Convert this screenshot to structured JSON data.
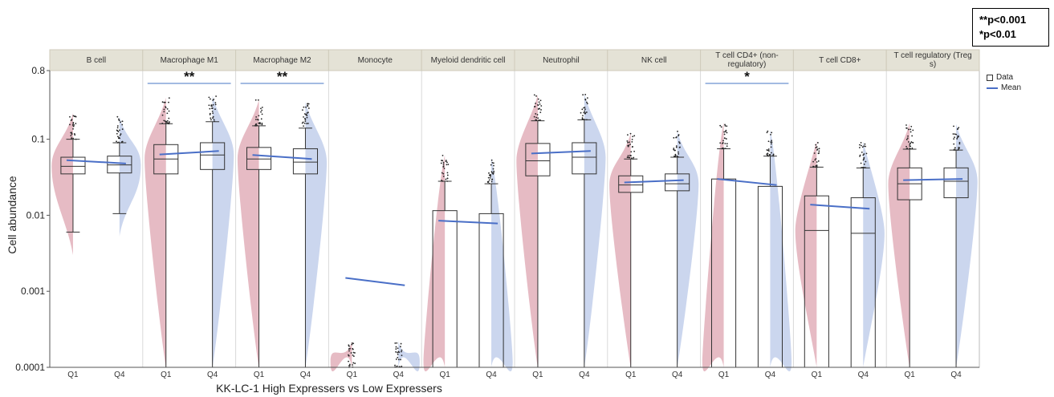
{
  "significance_legend": {
    "line1": "**p<0.001",
    "line2": "*p<0.01"
  },
  "plot_legend": {
    "data_label": "Data",
    "mean_label": "Mean"
  },
  "colors": {
    "high": "#d68e9c",
    "low": "#a8bbe2",
    "mean": "#4a6fc7",
    "header": "#e4e2d6",
    "sig_line": "#6c92d0"
  },
  "chart_data": {
    "type": "violin-box",
    "title": "",
    "xlabel": "KK-LC-1 High Expressers vs Low Expressers",
    "ylabel": "Cell abundance",
    "y_scale": "log",
    "ylim": [
      0.0001,
      0.8
    ],
    "y_ticks": [
      {
        "value": 0.8,
        "label": "0.8"
      },
      {
        "value": 0.1,
        "label": "0.1"
      },
      {
        "value": 0.01,
        "label": "0.01"
      },
      {
        "value": 0.001,
        "label": "0.001"
      },
      {
        "value": 0.0001,
        "label": "0.0001"
      }
    ],
    "groups": [
      "Q1",
      "Q4"
    ],
    "panels": [
      {
        "name": "B cell",
        "sig": "",
        "boxes": [
          {
            "group": "Q1",
            "min": 0.006,
            "q1": 0.035,
            "median": 0.044,
            "q3": 0.058,
            "max": 0.1,
            "mean": 0.053
          },
          {
            "group": "Q4",
            "min": 0.0105,
            "q1": 0.036,
            "median": 0.046,
            "q3": 0.06,
            "max": 0.09,
            "mean": 0.048
          }
        ]
      },
      {
        "name": "Macrophage M1",
        "sig": "**",
        "boxes": [
          {
            "group": "Q1",
            "min": 0.0001,
            "q1": 0.035,
            "median": 0.055,
            "q3": 0.085,
            "max": 0.16,
            "mean": 0.063
          },
          {
            "group": "Q4",
            "min": 0.0001,
            "q1": 0.04,
            "median": 0.062,
            "q3": 0.09,
            "max": 0.17,
            "mean": 0.07
          }
        ]
      },
      {
        "name": "Macrophage M2",
        "sig": "**",
        "boxes": [
          {
            "group": "Q1",
            "min": 0.0001,
            "q1": 0.04,
            "median": 0.055,
            "q3": 0.078,
            "max": 0.15,
            "mean": 0.062
          },
          {
            "group": "Q4",
            "min": 0.0001,
            "q1": 0.035,
            "median": 0.05,
            "q3": 0.075,
            "max": 0.14,
            "mean": 0.055
          }
        ]
      },
      {
        "name": "Monocyte",
        "sig": "",
        "boxes": [
          {
            "group": "Q1",
            "min": 0.0001,
            "q1": 0.0001,
            "median": 0.0001,
            "q3": 0.0001,
            "max": 0.0001,
            "mean": 0.0015
          },
          {
            "group": "Q4",
            "min": 0.0001,
            "q1": 0.0001,
            "median": 0.0001,
            "q3": 0.0001,
            "max": 0.0001,
            "mean": 0.0012
          }
        ]
      },
      {
        "name": "Myeloid dendritic cell",
        "sig": "",
        "boxes": [
          {
            "group": "Q1",
            "min": 0.0001,
            "q1": 0.0001,
            "median": 0.0001,
            "q3": 0.0115,
            "max": 0.028,
            "mean": 0.0085
          },
          {
            "group": "Q4",
            "min": 0.0001,
            "q1": 0.0001,
            "median": 0.0001,
            "q3": 0.0105,
            "max": 0.026,
            "mean": 0.0078
          }
        ]
      },
      {
        "name": "Neutrophil",
        "sig": "",
        "boxes": [
          {
            "group": "Q1",
            "min": 0.0001,
            "q1": 0.033,
            "median": 0.052,
            "q3": 0.088,
            "max": 0.175,
            "mean": 0.065
          },
          {
            "group": "Q4",
            "min": 0.0001,
            "q1": 0.035,
            "median": 0.058,
            "q3": 0.09,
            "max": 0.18,
            "mean": 0.07
          }
        ]
      },
      {
        "name": "NK cell",
        "sig": "",
        "boxes": [
          {
            "group": "Q1",
            "min": 0.0001,
            "q1": 0.02,
            "median": 0.025,
            "q3": 0.033,
            "max": 0.055,
            "mean": 0.027
          },
          {
            "group": "Q4",
            "min": 0.0001,
            "q1": 0.021,
            "median": 0.026,
            "q3": 0.035,
            "max": 0.058,
            "mean": 0.029
          }
        ]
      },
      {
        "name": "T cell CD4+ (non-regulatory)",
        "sig": "*",
        "boxes": [
          {
            "group": "Q1",
            "min": 0.0001,
            "q1": 0.0001,
            "median": 0.0001,
            "q3": 0.03,
            "max": 0.075,
            "mean": 0.03
          },
          {
            "group": "Q4",
            "min": 0.0001,
            "q1": 0.0001,
            "median": 0.0001,
            "q3": 0.024,
            "max": 0.06,
            "mean": 0.025
          }
        ]
      },
      {
        "name": "T cell CD8+",
        "sig": "",
        "boxes": [
          {
            "group": "Q1",
            "min": 0.0001,
            "q1": 0.0001,
            "median": 0.0063,
            "q3": 0.018,
            "max": 0.043,
            "mean": 0.0138
          },
          {
            "group": "Q4",
            "min": 0.0001,
            "q1": 0.0001,
            "median": 0.0058,
            "q3": 0.017,
            "max": 0.042,
            "mean": 0.0122
          }
        ]
      },
      {
        "name": "T cell regulatory (Tregs)",
        "sig": "",
        "boxes": [
          {
            "group": "Q1",
            "min": 0.0001,
            "q1": 0.016,
            "median": 0.026,
            "q3": 0.042,
            "max": 0.074,
            "mean": 0.029
          },
          {
            "group": "Q4",
            "min": 0.0001,
            "q1": 0.017,
            "median": 0.028,
            "q3": 0.042,
            "max": 0.072,
            "mean": 0.03
          }
        ]
      }
    ]
  }
}
